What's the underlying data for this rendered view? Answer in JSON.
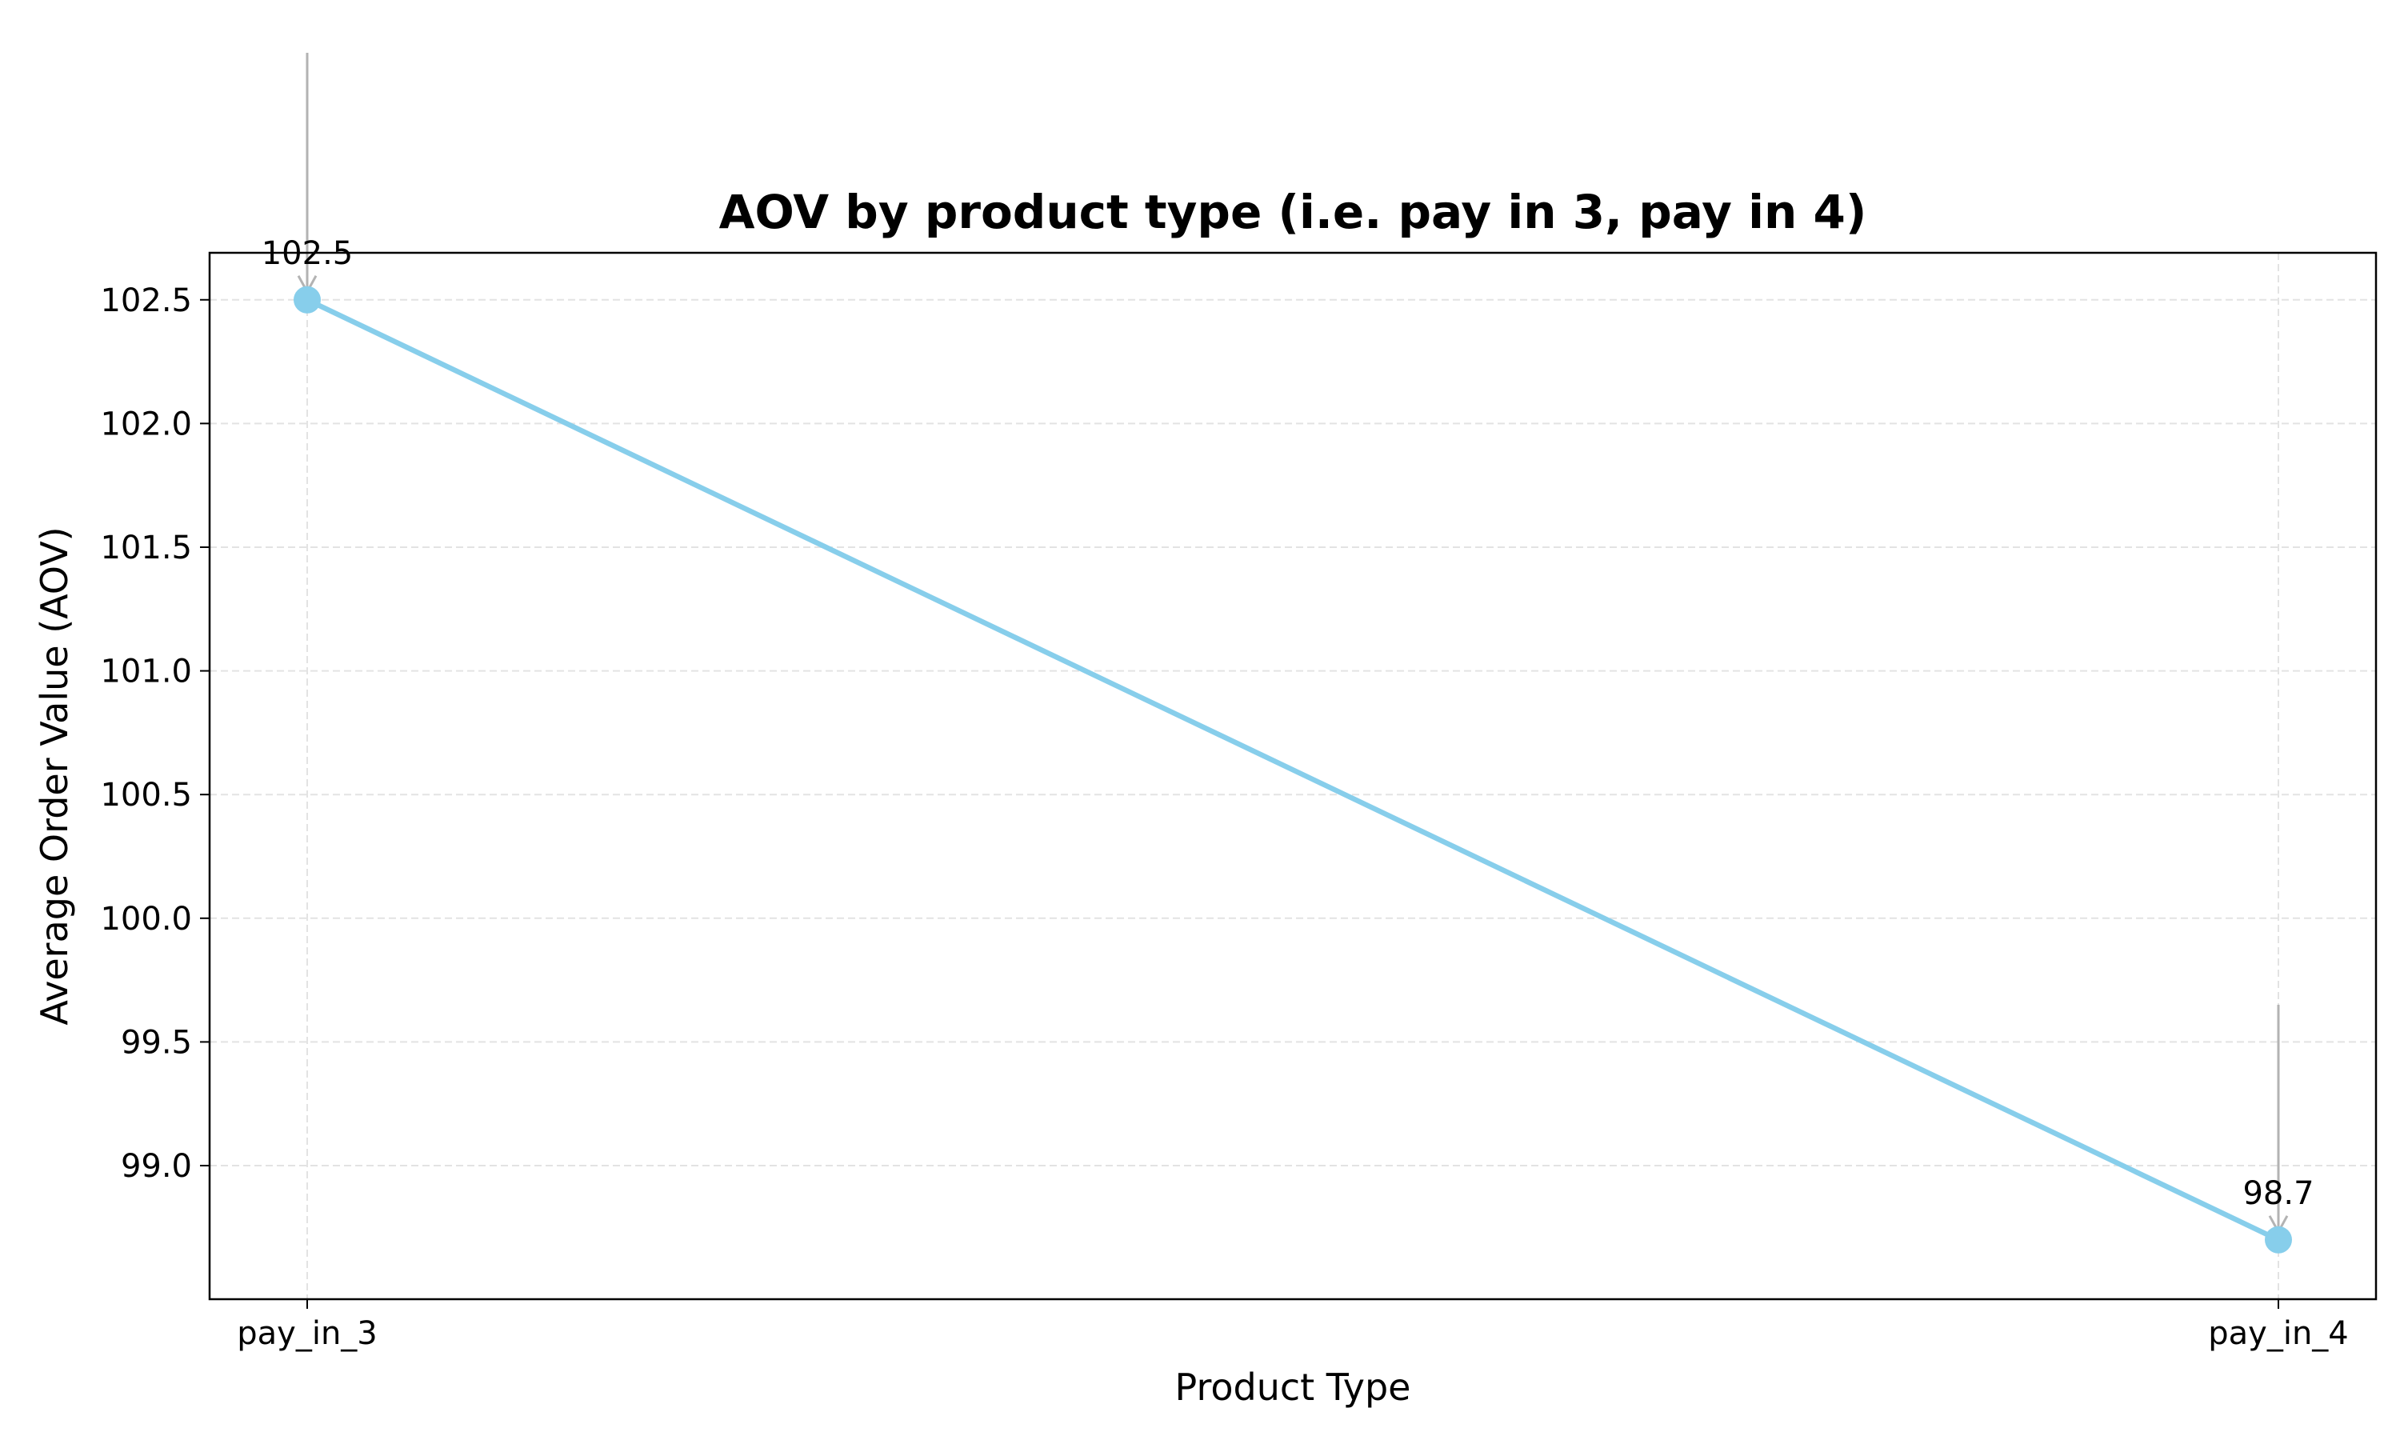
{
  "chart_data": {
    "type": "line",
    "title": "AOV by product type (i.e. pay in 3, pay in 4)",
    "xlabel": "Product Type",
    "ylabel": "Average Order Value (AOV)",
    "categories": [
      "pay_in_3",
      "pay_in_4"
    ],
    "values": [
      102.5,
      98.7
    ],
    "data_labels": [
      "102.5",
      "98.7"
    ],
    "ylim": [
      98.46,
      102.69
    ],
    "yticks": [
      99.0,
      99.5,
      100.0,
      100.5,
      101.0,
      101.5,
      102.0,
      102.5
    ],
    "ytick_labels": [
      "99.0",
      "99.5",
      "100.0",
      "100.5",
      "101.0",
      "101.5",
      "102.0",
      "102.5"
    ],
    "grid": true,
    "line_color": "#87CEEB",
    "annotation_arrow_color": "#b3b3b3"
  }
}
